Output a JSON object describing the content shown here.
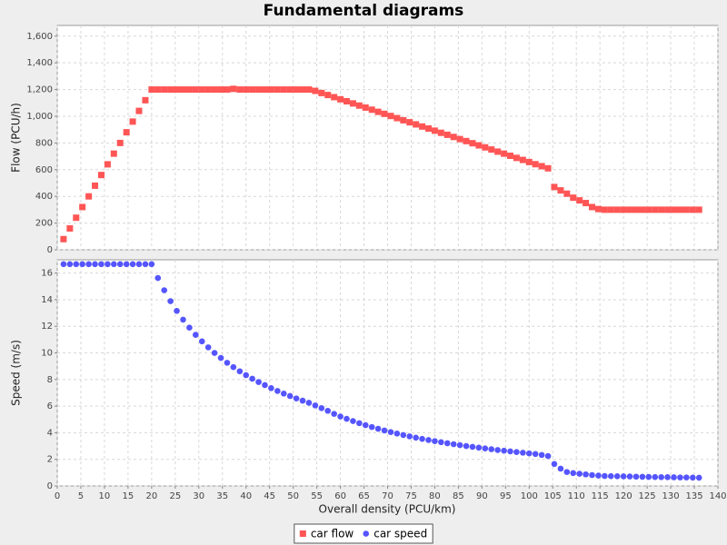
{
  "chart_data": {
    "type": "scatter",
    "title": "Fundamental diagrams",
    "x_label": "Overall density (PCU/km)",
    "xlim": [
      0,
      140
    ],
    "xticks": [
      0,
      5,
      10,
      15,
      20,
      25,
      30,
      35,
      40,
      45,
      50,
      55,
      60,
      65,
      70,
      75,
      80,
      85,
      90,
      95,
      100,
      105,
      110,
      115,
      120,
      125,
      130,
      135,
      140
    ],
    "grid": true,
    "legend": "bottom",
    "x": [
      1.33,
      2.67,
      4,
      5.33,
      6.67,
      8,
      9.33,
      10.67,
      12,
      13.33,
      14.67,
      16,
      17.33,
      18.67,
      20,
      21.33,
      22.67,
      24,
      25.33,
      26.67,
      28,
      29.33,
      30.67,
      32,
      33.33,
      34.67,
      36,
      37.33,
      38.67,
      40,
      41.33,
      42.67,
      44,
      45.33,
      46.67,
      48,
      49.33,
      50.67,
      52,
      53.33,
      54.67,
      56,
      57.33,
      58.67,
      60,
      61.33,
      62.67,
      64,
      65.33,
      66.67,
      68,
      69.33,
      70.67,
      72,
      73.33,
      74.67,
      76,
      77.33,
      78.67,
      80,
      81.33,
      82.67,
      84,
      85.33,
      86.67,
      88,
      89.33,
      90.67,
      92,
      93.33,
      94.67,
      96,
      97.33,
      98.67,
      100,
      101.33,
      102.67,
      104,
      105.33,
      106.67,
      108,
      109.33,
      110.67,
      112,
      113.33,
      114.67,
      116,
      117.33,
      118.67,
      120,
      121.33,
      122.67,
      124,
      125.33,
      126.67,
      128,
      129.33,
      130.67,
      132,
      133.33,
      134.67,
      136
    ],
    "subplots": [
      {
        "y_label": "Flow (PCU/h)",
        "ylim": [
          0,
          1680
        ],
        "yticks": [
          0,
          200,
          400,
          600,
          800,
          {
            "value": 1000,
            "label": "1,000"
          },
          {
            "value": 1200,
            "label": "1,200"
          },
          {
            "value": 1400,
            "label": "1,400"
          },
          {
            "value": 1600,
            "label": "1,600"
          }
        ],
        "series": [
          {
            "name": "car flow",
            "color": "#ff5555",
            "marker": "square",
            "values": [
              80,
              160,
              240,
              320,
              400,
              480,
              560,
              640,
              720,
              800,
              880,
              960,
              1040,
              1120,
              1200,
              1200,
              1200,
              1200,
              1200,
              1200,
              1200,
              1200,
              1200,
              1200,
              1200,
              1200,
              1200,
              1205,
              1200,
              1200,
              1200,
              1200,
              1200,
              1200,
              1200,
              1200,
              1200,
              1200,
              1200,
              1200,
              1190,
              1174,
              1159,
              1143,
              1127,
              1112,
              1096,
              1080,
              1065,
              1049,
              1033,
              1018,
              1002,
              986,
              970,
              955,
              939,
              923,
              908,
              892,
              876,
              861,
              845,
              829,
              814,
              798,
              782,
              767,
              751,
              735,
              720,
              704,
              688,
              673,
              657,
              641,
              626,
              610,
              470,
              445,
              420,
              390,
              370,
              350,
              320,
              305,
              300,
              300,
              300,
              300,
              300,
              300,
              300,
              300,
              300,
              300,
              300,
              300,
              300,
              300,
              300,
              300
            ]
          }
        ]
      },
      {
        "y_label": "Speed (m/s)",
        "ylim": [
          0,
          17
        ],
        "yticks": [
          0,
          2,
          4,
          6,
          8,
          10,
          12,
          14,
          16
        ],
        "series": [
          {
            "name": "car speed",
            "color": "#5555ff",
            "marker": "circle",
            "values": [
              16.67,
              16.67,
              16.67,
              16.67,
              16.67,
              16.67,
              16.67,
              16.67,
              16.67,
              16.67,
              16.67,
              16.67,
              16.67,
              16.67,
              16.67,
              15.63,
              14.71,
              13.89,
              13.16,
              12.5,
              11.9,
              11.36,
              10.87,
              10.42,
              10,
              9.62,
              9.26,
              8.93,
              8.62,
              8.33,
              8.06,
              7.81,
              7.58,
              7.35,
              7.14,
              6.94,
              6.76,
              6.58,
              6.41,
              6.25,
              6.05,
              5.85,
              5.65,
              5.42,
              5.22,
              5.05,
              4.88,
              4.72,
              4.57,
              4.43,
              4.3,
              4.17,
              4.05,
              3.94,
              3.83,
              3.73,
              3.63,
              3.54,
              3.45,
              3.37,
              3.29,
              3.21,
              3.14,
              3.07,
              3,
              2.94,
              2.88,
              2.82,
              2.76,
              2.7,
              2.65,
              2.6,
              2.55,
              2.5,
              2.45,
              2.4,
              2.33,
              2.25,
              1.65,
              1.3,
              1.05,
              0.97,
              0.92,
              0.87,
              0.82,
              0.78,
              0.75,
              0.74,
              0.73,
              0.72,
              0.71,
              0.7,
              0.69,
              0.68,
              0.67,
              0.66,
              0.66,
              0.65,
              0.64,
              0.64,
              0.63,
              0.62
            ]
          }
        ]
      }
    ]
  }
}
